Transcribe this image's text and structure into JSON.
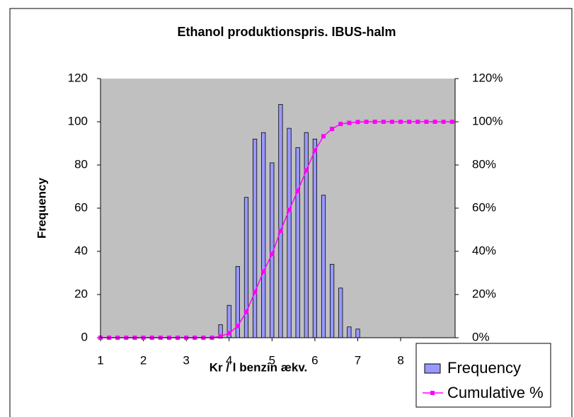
{
  "chart_data": {
    "type": "histogram-pareto",
    "title": "Ethanol produktionspris. IBUS-halm",
    "x_label": "Kr / l benzin ækv.",
    "y_label": "Frequency",
    "x": [
      1.0,
      1.2,
      1.4,
      1.6,
      1.8,
      2.0,
      2.2,
      2.4,
      2.6,
      2.8,
      3.0,
      3.2,
      3.4,
      3.6,
      3.8,
      4.0,
      4.2,
      4.4,
      4.6,
      4.8,
      5.0,
      5.2,
      5.4,
      5.6,
      5.8,
      6.0,
      6.2,
      6.4,
      6.6,
      6.8,
      7.0,
      7.2,
      7.4,
      7.6,
      7.8,
      8.0,
      8.2,
      8.4,
      8.6,
      8.8,
      9.0,
      9.2
    ],
    "series": [
      {
        "name": "Frequency",
        "color": "#9999ff",
        "values": [
          0,
          0,
          0,
          0,
          0,
          0,
          0,
          0,
          0,
          0,
          0,
          0,
          0,
          0,
          6,
          15,
          33,
          65,
          92,
          95,
          81,
          108,
          97,
          88,
          95,
          92,
          66,
          34,
          23,
          5,
          4,
          0,
          0,
          0,
          0,
          0,
          0,
          0,
          0,
          0,
          0,
          0
        ]
      },
      {
        "name": "Cumulative %",
        "color": "#ff00ff",
        "axis": "y2",
        "values": [
          0,
          0,
          0,
          0,
          0,
          0,
          0,
          0,
          0,
          0,
          0,
          0,
          0,
          0,
          0.6,
          2.1,
          5.4,
          11.9,
          21.1,
          30.6,
          38.7,
          49.5,
          59.2,
          68.0,
          77.5,
          86.7,
          93.3,
          96.7,
          99.0,
          99.5,
          99.9,
          100,
          100,
          100,
          100,
          100,
          100,
          100,
          100,
          100,
          100,
          100
        ]
      }
    ],
    "xlim": [
      1,
      9.27
    ],
    "xticks": [
      1,
      2,
      3,
      4,
      5,
      6,
      7,
      8
    ],
    "ylim": [
      0,
      120
    ],
    "yticks": [
      0,
      20,
      40,
      60,
      80,
      100,
      120
    ],
    "y2lim": [
      0,
      120
    ],
    "y2ticks": [
      {
        "value": 0,
        "label": "0%"
      },
      {
        "value": 20,
        "label": "20%"
      },
      {
        "value": 40,
        "label": "40%"
      },
      {
        "value": 60,
        "label": "60%"
      },
      {
        "value": 80,
        "label": "80%"
      },
      {
        "value": 100,
        "label": "100%"
      },
      {
        "value": 120,
        "label": "120%"
      }
    ],
    "plot_background": "#c0c0c0",
    "legend": "bottom-right"
  }
}
